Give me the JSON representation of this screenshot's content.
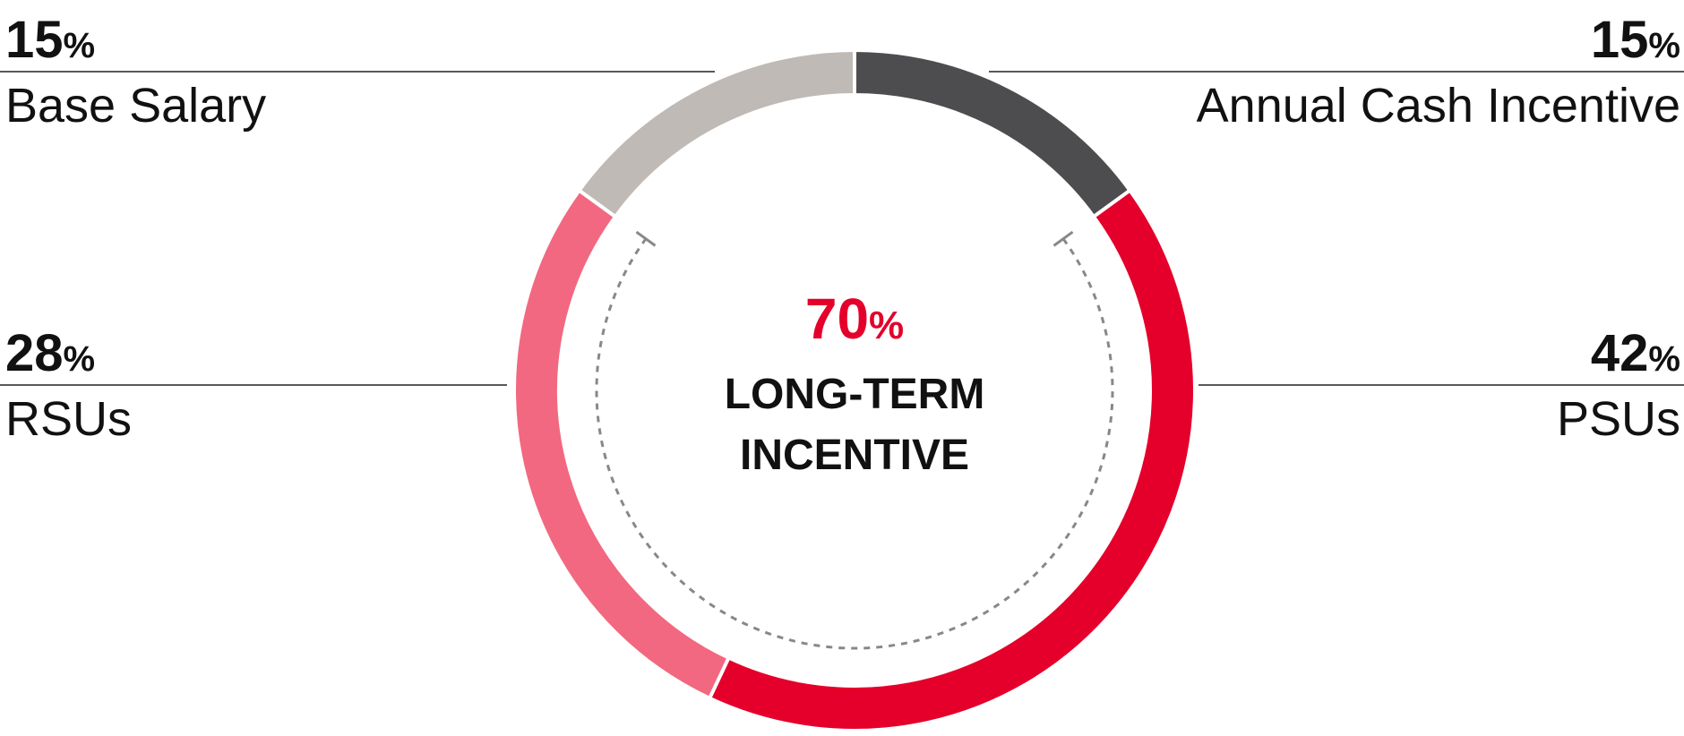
{
  "chart_data": {
    "type": "pie",
    "donut": true,
    "categories": [
      "Annual Cash Incentive",
      "PSUs",
      "RSUs",
      "Base Salary"
    ],
    "values": [
      15,
      42,
      28,
      15
    ],
    "value_labels": [
      "15%",
      "42%",
      "28%",
      "15%"
    ],
    "colors": [
      "#4d4d4f",
      "#e4002b",
      "#f26880",
      "#bfbab5"
    ],
    "center_value": {
      "value": 70,
      "label": "70%"
    },
    "center_text": [
      "LONG-TERM",
      "INCENTIVE"
    ]
  }
}
